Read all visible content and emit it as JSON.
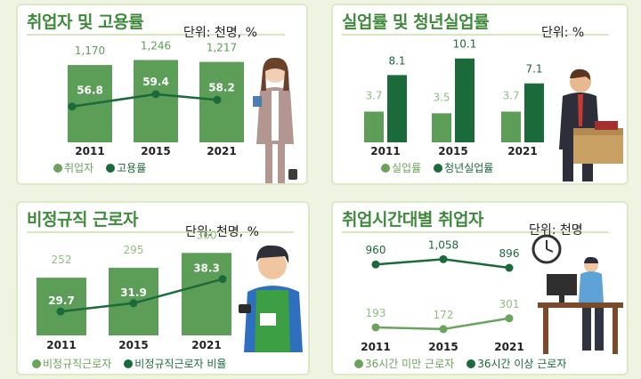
{
  "colors": {
    "light_green": "#6aa35b",
    "dark_green": "#1b6a3a",
    "light_green_text": "#8fbe80",
    "bar_light": "#5c9d58",
    "title_green": "#3f8a3c"
  },
  "panels": {
    "employment": {
      "title": "취업자 및 고용률",
      "unit": "단위: 천명, %",
      "legend": [
        "취업자",
        "고용률"
      ]
    },
    "unemployment": {
      "title": "실업률 및 청년실업률",
      "unit": "단위:  %",
      "legend": [
        "실업률",
        "청년실업률"
      ]
    },
    "nonregular": {
      "title": "비정규직 근로자",
      "unit": "단위: 천명, %",
      "legend": [
        "비정규직근로자",
        "비정규직근로자 비율"
      ]
    },
    "hours": {
      "title": "취업시간대별 취업자",
      "unit": "단위:  천명",
      "legend": [
        "36시간 미만 근로자",
        "36시간 이상 근로자"
      ]
    }
  },
  "chart_data": [
    {
      "type": "bar",
      "panel": "employment",
      "categories": [
        "2011",
        "2015",
        "2021"
      ],
      "series": [
        {
          "name": "취업자",
          "type": "bar",
          "values": [
            1170,
            1246,
            1217
          ],
          "labels": [
            "1,170",
            "1,246",
            "1,217"
          ]
        },
        {
          "name": "고용률",
          "type": "line",
          "values": [
            56.8,
            59.4,
            58.2
          ],
          "labels": [
            "56.8",
            "59.4",
            "58.2"
          ]
        }
      ]
    },
    {
      "type": "bar",
      "panel": "unemployment",
      "categories": [
        "2011",
        "2015",
        "2021"
      ],
      "series": [
        {
          "name": "실업률",
          "values": [
            3.7,
            3.5,
            3.7
          ],
          "labels": [
            "3.7",
            "3.5",
            "3.7"
          ]
        },
        {
          "name": "청년실업률",
          "values": [
            8.1,
            10.1,
            7.1
          ],
          "labels": [
            "8.1",
            "10.1",
            "7.1"
          ]
        }
      ]
    },
    {
      "type": "bar",
      "panel": "nonregular",
      "categories": [
        "2011",
        "2015",
        "2021"
      ],
      "series": [
        {
          "name": "비정규직근로자",
          "type": "bar",
          "values": [
            252,
            295,
            360
          ],
          "labels": [
            "252",
            "295",
            "360"
          ]
        },
        {
          "name": "비정규직근로자 비율",
          "type": "line",
          "values": [
            29.7,
            31.9,
            38.3
          ],
          "labels": [
            "29.7",
            "31.9",
            "38.3"
          ]
        }
      ]
    },
    {
      "type": "line",
      "panel": "hours",
      "categories": [
        "2011",
        "2015",
        "2021"
      ],
      "series": [
        {
          "name": "36시간 미만 근로자",
          "values": [
            193,
            172,
            301
          ],
          "labels": [
            "193",
            "172",
            "301"
          ]
        },
        {
          "name": "36시간 이상 근로자",
          "values": [
            960,
            1058,
            896
          ],
          "labels": [
            "960",
            "1,058",
            "896"
          ]
        }
      ]
    }
  ]
}
